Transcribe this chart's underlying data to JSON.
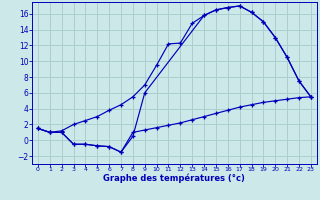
{
  "xlabel": "Graphe des températures (°c)",
  "bg_color": "#cce8e8",
  "grid_color": "#aacfcf",
  "line_color": "#0000bb",
  "xlim": [
    -0.5,
    23.5
  ],
  "ylim": [
    -3.0,
    17.5
  ],
  "yticks": [
    -2,
    0,
    2,
    4,
    6,
    8,
    10,
    12,
    14,
    16
  ],
  "xticks": [
    0,
    1,
    2,
    3,
    4,
    5,
    6,
    7,
    8,
    9,
    10,
    11,
    12,
    13,
    14,
    15,
    16,
    17,
    18,
    19,
    20,
    21,
    22,
    23
  ],
  "curve1_x": [
    0,
    1,
    2,
    3,
    4,
    5,
    6,
    7,
    8,
    9,
    10,
    11,
    12,
    13,
    14,
    15,
    16,
    17,
    18,
    19,
    20,
    21,
    22,
    23
  ],
  "curve1_y": [
    1.5,
    1.0,
    1.2,
    2.0,
    2.5,
    3.0,
    3.8,
    4.5,
    5.5,
    7.0,
    9.5,
    12.2,
    12.3,
    14.8,
    15.8,
    16.5,
    16.8,
    17.0,
    16.2,
    15.0,
    13.0,
    10.5,
    7.5,
    5.5
  ],
  "curve2_x": [
    0,
    1,
    2,
    3,
    4,
    5,
    6,
    7,
    8,
    9,
    10,
    11,
    12,
    13,
    14,
    15,
    16,
    17,
    18,
    19,
    20,
    21,
    22,
    23
  ],
  "curve2_y": [
    1.5,
    1.0,
    1.0,
    -0.5,
    -0.5,
    -0.7,
    -0.8,
    -1.5,
    1.0,
    1.3,
    1.6,
    1.9,
    2.2,
    2.6,
    3.0,
    3.4,
    3.8,
    4.2,
    4.5,
    4.8,
    5.0,
    5.2,
    5.4,
    5.5
  ],
  "curve3_x": [
    0,
    1,
    2,
    3,
    4,
    5,
    6,
    7,
    8,
    9,
    14,
    15,
    16,
    17,
    18,
    19,
    20,
    21,
    22,
    23
  ],
  "curve3_y": [
    1.5,
    1.0,
    1.0,
    -0.5,
    -0.5,
    -0.7,
    -0.8,
    -1.5,
    0.5,
    6.0,
    15.8,
    16.5,
    16.8,
    17.0,
    16.2,
    15.0,
    13.0,
    10.5,
    7.5,
    5.5
  ]
}
